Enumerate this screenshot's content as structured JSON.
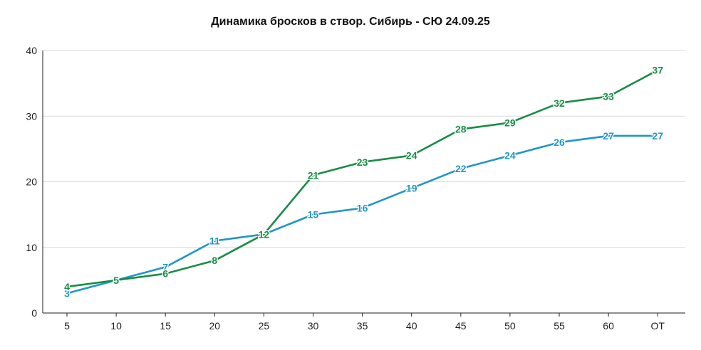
{
  "chart_data": {
    "type": "line",
    "title": "Динамика бросков в створ. Сибирь - СЮ 24.09.25",
    "xlabel": "",
    "ylabel": "",
    "categories": [
      "5",
      "10",
      "15",
      "20",
      "25",
      "30",
      "35",
      "40",
      "45",
      "50",
      "55",
      "60",
      "ОТ"
    ],
    "ylim": [
      0,
      40
    ],
    "yticks": [
      0,
      10,
      20,
      30,
      40
    ],
    "grid": true,
    "legend": "none",
    "series": [
      {
        "values": [
          3,
          5,
          7,
          11,
          12,
          15,
          16,
          19,
          22,
          24,
          26,
          27,
          27
        ],
        "color": "#2196c4"
      },
      {
        "values": [
          4,
          5,
          6,
          8,
          12,
          21,
          23,
          24,
          28,
          29,
          32,
          33,
          37
        ],
        "color": "#1a8c45"
      }
    ]
  }
}
